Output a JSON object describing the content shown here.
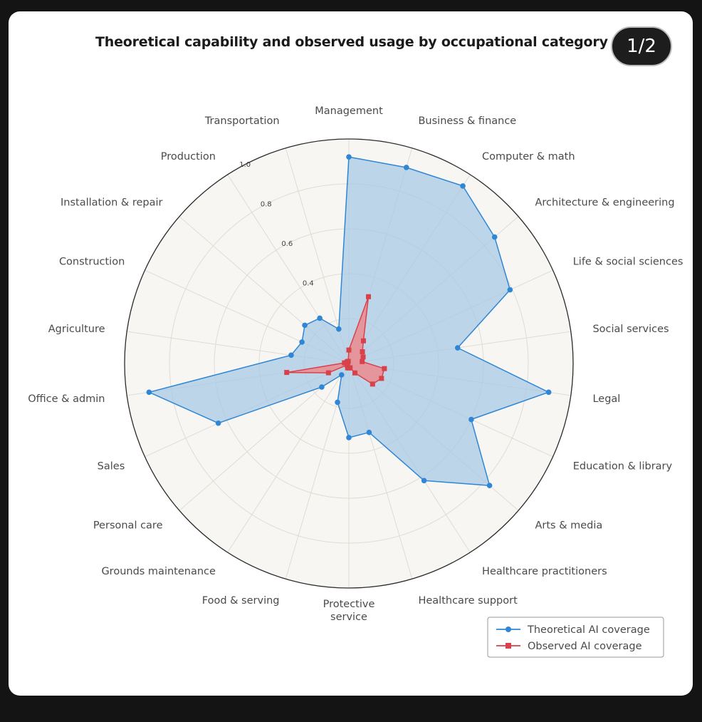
{
  "header": {
    "title": "Theoretical capability and observed usage by occupational category",
    "page_indicator": "1/2"
  },
  "chart_data": {
    "type": "radar",
    "title": "Theoretical capability and observed usage by occupational category",
    "categories": [
      "Management",
      "Business & finance",
      "Computer & math",
      "Architecture & engineering",
      "Life & social sciences",
      "Social services",
      "Legal",
      "Education & library",
      "Arts & media",
      "Healthcare practitioners",
      "Healthcare support",
      "Protective service",
      "Food & serving",
      "Grounds maintenance",
      "Personal care",
      "Sales",
      "Office & admin",
      "Agriculture",
      "Construction",
      "Installation & repair",
      "Production",
      "Transportation"
    ],
    "radial_ticks": [
      "0.4",
      "0.6",
      "0.8",
      "1.0"
    ],
    "rlim": [
      0,
      1
    ],
    "series": [
      {
        "name": "Theoretical AI coverage",
        "color": "#2f86d4",
        "fill": "#a9c9e6",
        "marker": "circle",
        "values": [
          0.92,
          0.91,
          0.94,
          0.86,
          0.79,
          0.49,
          0.9,
          0.6,
          0.83,
          0.62,
          0.32,
          0.33,
          0.18,
          0.06,
          0.16,
          0.64,
          0.9,
          0.26,
          0.23,
          0.26,
          0.24,
          0.16
        ]
      },
      {
        "name": "Observed AI coverage",
        "color": "#d9414a",
        "fill": "#eb8b8e",
        "marker": "square",
        "values": [
          0.06,
          0.31,
          0.12,
          0.08,
          0.07,
          0.06,
          0.16,
          0.16,
          0.14,
          0.05,
          0.02,
          0.02,
          0.02,
          0.01,
          0.01,
          0.1,
          0.28,
          0.02,
          0.01,
          0.01,
          0.01,
          0.01
        ]
      }
    ],
    "legend_position": "bottom-right",
    "grid": true
  }
}
